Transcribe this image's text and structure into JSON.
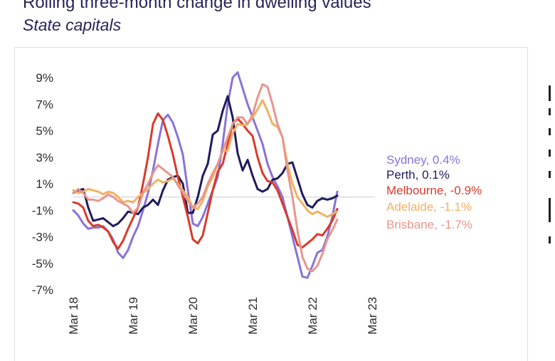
{
  "header": {
    "title": "Rolling three-month change in dwelling values",
    "subtitle": "State capitals"
  },
  "chart_data": {
    "type": "line",
    "title": "Rolling three-month change in dwelling values",
    "subtitle": "State capitals",
    "xlabel": "",
    "ylabel": "",
    "ylim": [
      -7,
      9
    ],
    "y_ticks": [
      9,
      7,
      5,
      3,
      1,
      -1,
      -3,
      -5,
      -7
    ],
    "y_tick_labels": [
      "9%",
      "7%",
      "5%",
      "3%",
      "1%",
      "-1%",
      "-3%",
      "-5%",
      "-7%"
    ],
    "x_tick_labels": [
      "Mar 18",
      "Mar 19",
      "Mar 20",
      "Mar 21",
      "Mar 22",
      "Mar 23"
    ],
    "x_tick_index": [
      0,
      12,
      24,
      36,
      48,
      60
    ],
    "grid": false,
    "legend": "direct labels right",
    "series": [
      {
        "name": "Sydney",
        "end_label": "Sydney, 0.4%",
        "color": "#8a72d9",
        "values": [
          -1.0,
          -1.4,
          -2.0,
          -2.4,
          -2.3,
          -2.3,
          -2.2,
          -2.6,
          -3.2,
          -4.2,
          -4.6,
          -4.0,
          -3.0,
          -2.2,
          -1.0,
          0.3,
          2.0,
          4.0,
          5.8,
          6.2,
          5.6,
          4.5,
          3.2,
          0.5,
          -2.0,
          -2.2,
          -1.5,
          -0.5,
          0.5,
          1.5,
          4.0,
          7.0,
          9.0,
          9.4,
          8.2,
          7.0,
          6.0,
          5.0,
          4.0,
          2.5,
          1.5,
          0.8,
          0.0,
          -1.5,
          -3.0,
          -4.5,
          -6.0,
          -6.1,
          -5.2,
          -4.2,
          -4.0,
          -3.0,
          -1.5,
          0.4
        ]
      },
      {
        "name": "Perth",
        "end_label": "Perth, 0.1%",
        "color": "#1f1b5e",
        "values": [
          0.3,
          0.5,
          0.6,
          -0.8,
          -1.8,
          -1.7,
          -1.6,
          -1.9,
          -2.2,
          -2.0,
          -1.6,
          -1.1,
          -1.2,
          -1.3,
          -0.8,
          -0.6,
          -0.2,
          -0.6,
          0.5,
          1.3,
          1.5,
          1.6,
          1.0,
          -1.2,
          -1.2,
          0.0,
          1.6,
          2.5,
          4.7,
          5.0,
          6.5,
          7.6,
          6.0,
          3.3,
          2.0,
          2.8,
          1.6,
          0.6,
          0.4,
          0.6,
          1.3,
          1.4,
          1.8,
          2.5,
          2.6,
          1.4,
          0.2,
          -0.6,
          -0.8,
          -0.3,
          -0.1,
          -0.2,
          -0.1,
          0.1
        ]
      },
      {
        "name": "Melbourne",
        "end_label": "Melbourne, -0.9%",
        "color": "#d93a2b",
        "values": [
          -0.4,
          -0.5,
          -0.8,
          -1.8,
          -2.2,
          -2.1,
          -2.3,
          -2.6,
          -3.4,
          -3.9,
          -3.3,
          -2.4,
          -1.6,
          -0.8,
          1.0,
          3.0,
          5.5,
          6.3,
          5.8,
          4.6,
          3.2,
          1.5,
          0.0,
          -1.5,
          -3.2,
          -3.5,
          -2.9,
          -1.2,
          0.5,
          1.9,
          2.5,
          4.0,
          5.5,
          5.9,
          5.5,
          5.0,
          4.6,
          3.0,
          1.8,
          1.2,
          1.1,
          0.5,
          -0.5,
          -1.5,
          -2.5,
          -3.6,
          -3.8,
          -3.5,
          -3.2,
          -2.8,
          -2.9,
          -2.4,
          -1.8,
          -0.9
        ]
      },
      {
        "name": "Adelaide",
        "end_label": "Adelaide, -1.1%",
        "color": "#f2b062",
        "values": [
          0.5,
          0.3,
          0.4,
          0.6,
          0.5,
          0.4,
          0.2,
          0.4,
          0.3,
          0.0,
          -0.4,
          -0.3,
          -0.4,
          0.0,
          0.3,
          0.6,
          1.0,
          1.3,
          1.1,
          1.2,
          1.4,
          1.0,
          0.5,
          0.0,
          -0.8,
          -0.9,
          -0.3,
          0.8,
          1.5,
          2.5,
          3.5,
          3.5,
          4.8,
          5.5,
          5.4,
          5.5,
          6.0,
          6.6,
          7.3,
          6.5,
          5.5,
          5.3,
          4.5,
          2.5,
          1.0,
          0.0,
          -0.5,
          -1.0,
          -1.3,
          -1.1,
          -1.3,
          -1.5,
          -1.3,
          -1.1
        ]
      },
      {
        "name": "Brisbane",
        "end_label": "Brisbane, -1.7%",
        "color": "#e8968c",
        "values": [
          0.3,
          0.6,
          0.3,
          -0.2,
          -0.2,
          -0.3,
          -0.1,
          0.2,
          0.0,
          -0.3,
          -0.5,
          -0.7,
          -1.2,
          -0.8,
          0.3,
          1.0,
          1.8,
          2.4,
          2.1,
          1.8,
          1.5,
          0.9,
          0.3,
          -0.3,
          -0.8,
          -0.5,
          0.0,
          1.0,
          1.8,
          2.5,
          3.5,
          4.5,
          5.5,
          6.0,
          6.0,
          5.5,
          6.2,
          7.5,
          8.5,
          8.3,
          7.0,
          5.5,
          4.5,
          2.0,
          0.0,
          -2.5,
          -4.5,
          -5.4,
          -5.6,
          -5.2,
          -4.3,
          -3.2,
          -2.5,
          -1.7
        ]
      }
    ]
  }
}
